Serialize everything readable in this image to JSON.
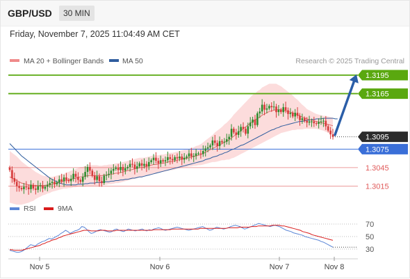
{
  "header": {
    "symbol": "GBP/USD",
    "timeframe": "30 MIN",
    "datetime": "Friday, November 7, 2025 11:04:49 AM CET"
  },
  "legend": [
    {
      "label": "MA 20 + Bollinger Bands",
      "color": "#f08a8a"
    },
    {
      "label": "MA 50",
      "color": "#2f5d9e"
    }
  ],
  "copyright": "Research © 2025 Trading Central",
  "colors": {
    "green": "#5aa80f",
    "blue": "#3a6fd8",
    "red": "#e05a5a",
    "arrow": "#2b5ea8",
    "up": "#2e8b2e",
    "down": "#d63a3a"
  },
  "chart_data": {
    "type": "candlestick",
    "x_ticks": [
      "Nov 5",
      "Nov 6",
      "Nov 7",
      "Nov 8"
    ],
    "y_levels": [
      {
        "value": 1.3195,
        "label": "1.3195",
        "style": "green-box"
      },
      {
        "value": 1.3165,
        "label": "1.3165",
        "style": "green-box"
      },
      {
        "value": 1.3095,
        "label": "1.3095",
        "style": "dark-box",
        "current": true
      },
      {
        "value": 1.3075,
        "label": "1.3075",
        "style": "blue-box"
      },
      {
        "value": 1.3045,
        "label": "1.3045",
        "style": "red-text"
      },
      {
        "value": 1.3015,
        "label": "1.3015",
        "style": "red-text"
      }
    ],
    "close": [
      1.3041,
      1.3028,
      1.3022,
      1.3015,
      1.3012,
      1.301,
      1.3014,
      1.3013,
      1.301,
      1.3017,
      1.3011,
      1.3009,
      1.3015,
      1.3016,
      1.3011,
      1.3014,
      1.3017,
      1.302,
      1.3022,
      1.3018,
      1.3021,
      1.3026,
      1.3023,
      1.3029,
      1.3025,
      1.3023,
      1.3027,
      1.3035,
      1.303,
      1.3025,
      1.3022,
      1.303,
      1.3038,
      1.3046,
      1.304,
      1.3032,
      1.3025,
      1.3031,
      1.3023,
      1.302,
      1.3032,
      1.3033,
      1.3035,
      1.304,
      1.3043,
      1.3045,
      1.3041,
      1.3046,
      1.304,
      1.3044,
      1.3046,
      1.3051,
      1.305,
      1.3043,
      1.3047,
      1.3052,
      1.3048,
      1.3051,
      1.3047,
      1.3054,
      1.3057,
      1.3061,
      1.3056,
      1.3052,
      1.3057,
      1.3055,
      1.3057,
      1.3062,
      1.3059,
      1.3057,
      1.3062,
      1.306,
      1.3063,
      1.3058,
      1.3061,
      1.3063,
      1.3068,
      1.3063,
      1.3064,
      1.3068,
      1.3068,
      1.3067,
      1.3072,
      1.3076,
      1.3078,
      1.3081,
      1.3089,
      1.3085,
      1.308,
      1.3088,
      1.3086,
      1.3087,
      1.3091,
      1.3095,
      1.3108,
      1.3102,
      1.3098,
      1.3104,
      1.3111,
      1.3108,
      1.31,
      1.3112,
      1.3118,
      1.3123,
      1.3114,
      1.3133,
      1.3136,
      1.3147,
      1.3139,
      1.3141,
      1.3145,
      1.3143,
      1.3144,
      1.3135,
      1.3139,
      1.3135,
      1.3143,
      1.3138,
      1.3132,
      1.3134,
      1.3128,
      1.3134,
      1.3129,
      1.3122,
      1.3125,
      1.3121,
      1.3118,
      1.312,
      1.312,
      1.3117,
      1.3116,
      1.3119,
      1.312,
      1.3121,
      1.3112,
      1.3105,
      1.3099,
      1.3095
    ],
    "ma20": [
      1.303,
      1.3028,
      1.3026,
      1.3024,
      1.3022,
      1.302,
      1.3019,
      1.3018,
      1.3017,
      1.3017,
      1.3016,
      1.3016,
      1.3016,
      1.3016,
      1.3016,
      1.3016,
      1.3017,
      1.3017,
      1.3018,
      1.3019,
      1.302,
      1.3021,
      1.3022,
      1.3023,
      1.3024,
      1.3025,
      1.3026,
      1.3027,
      1.3028,
      1.3029,
      1.303,
      1.303,
      1.3031,
      1.3032,
      1.3032,
      1.3032,
      1.3032,
      1.3032,
      1.3032,
      1.3032,
      1.3033,
      1.3033,
      1.3034,
      1.3034,
      1.3035,
      1.3036,
      1.3036,
      1.3037,
      1.3038,
      1.3039,
      1.304,
      1.3041,
      1.3042,
      1.3043,
      1.3044,
      1.3045,
      1.3045,
      1.3046,
      1.3047,
      1.3048,
      1.3049,
      1.305,
      1.305,
      1.3051,
      1.3052,
      1.3052,
      1.3053,
      1.3054,
      1.3055,
      1.3055,
      1.3056,
      1.3057,
      1.3058,
      1.3059,
      1.306,
      1.306,
      1.3061,
      1.3062,
      1.3063,
      1.3064,
      1.3065,
      1.3066,
      1.3068,
      1.307,
      1.3072,
      1.3074,
      1.3076,
      1.3078,
      1.308,
      1.3082,
      1.3084,
      1.3086,
      1.3088,
      1.309,
      1.3093,
      1.3096,
      1.3099,
      1.3102,
      1.3105,
      1.3108,
      1.3111,
      1.3114,
      1.3117,
      1.312,
      1.3122,
      1.3125,
      1.3127,
      1.313,
      1.3132,
      1.3134,
      1.3136,
      1.3137,
      1.3138,
      1.3139,
      1.3139,
      1.3139,
      1.3138,
      1.3137,
      1.3136,
      1.3135,
      1.3134,
      1.3132,
      1.3131,
      1.3129,
      1.3127,
      1.3126,
      1.3124,
      1.3123,
      1.3122,
      1.3121,
      1.312,
      1.3119,
      1.3118,
      1.3117,
      1.3116,
      1.3115,
      1.3114,
      1.3113
    ],
    "ma50": [
      1.3084,
      1.308,
      1.3076,
      1.3072,
      1.3068,
      1.3064,
      1.3061,
      1.3058,
      1.3055,
      1.3052,
      1.3049,
      1.3046,
      1.3043,
      1.304,
      1.3037,
      1.3034,
      1.3031,
      1.3028,
      1.3026,
      1.3024,
      1.3022,
      1.302,
      1.3019,
      1.3018,
      1.3017,
      1.3017,
      1.3017,
      1.3017,
      1.3017,
      1.3018,
      1.3018,
      1.3018,
      1.3019,
      1.3019,
      1.302,
      1.302,
      1.302,
      1.3021,
      1.3021,
      1.3021,
      1.3022,
      1.3022,
      1.3022,
      1.3023,
      1.3023,
      1.3024,
      1.3024,
      1.3025,
      1.3025,
      1.3026,
      1.3026,
      1.3027,
      1.3028,
      1.3028,
      1.3029,
      1.303,
      1.303,
      1.3031,
      1.3032,
      1.3033,
      1.3034,
      1.3035,
      1.3036,
      1.3037,
      1.3038,
      1.3039,
      1.304,
      1.3041,
      1.3042,
      1.3043,
      1.3044,
      1.3045,
      1.3046,
      1.3047,
      1.3048,
      1.3049,
      1.305,
      1.3051,
      1.3052,
      1.3053,
      1.3054,
      1.3055,
      1.3056,
      1.3058,
      1.3059,
      1.306,
      1.3062,
      1.3063,
      1.3064,
      1.3066,
      1.3067,
      1.3069,
      1.307,
      1.3072,
      1.3074,
      1.3075,
      1.3077,
      1.3079,
      1.3081,
      1.3082,
      1.3084,
      1.3086,
      1.3088,
      1.309,
      1.3092,
      1.3094,
      1.3096,
      1.3098,
      1.31,
      1.3102,
      1.3104,
      1.3106,
      1.3107,
      1.3109,
      1.311,
      1.3112,
      1.3113,
      1.3114,
      1.3115,
      1.3116,
      1.3117,
      1.3118,
      1.3119,
      1.312,
      1.312,
      1.3121,
      1.3122,
      1.3122,
      1.3123,
      1.3123,
      1.3124,
      1.3124,
      1.3124,
      1.3125,
      1.3125,
      1.3125,
      1.3125,
      1.3125,
      1.3124,
      1.3124
    ],
    "bb_width": [
      0.0042,
      0.0041,
      0.004,
      0.0039,
      0.0037,
      0.0035,
      0.0033,
      0.0031,
      0.0029,
      0.0027,
      0.0025,
      0.0022,
      0.002,
      0.0018,
      0.0016,
      0.0015,
      0.0014,
      0.0013,
      0.0012,
      0.0012,
      0.0012,
      0.0012,
      0.0012,
      0.0012,
      0.0013,
      0.0013,
      0.0014,
      0.0014,
      0.0015,
      0.0015,
      0.0016,
      0.0016,
      0.0017,
      0.0017,
      0.0017,
      0.0017,
      0.0017,
      0.0017,
      0.0016,
      0.0016,
      0.0016,
      0.0016,
      0.0016,
      0.0016,
      0.0016,
      0.0016,
      0.0016,
      0.0016,
      0.0016,
      0.0016,
      0.0016,
      0.0016,
      0.0016,
      0.0016,
      0.0016,
      0.0016,
      0.0016,
      0.0015,
      0.0015,
      0.0015,
      0.0015,
      0.0015,
      0.0015,
      0.0014,
      0.0014,
      0.0014,
      0.0014,
      0.0014,
      0.0014,
      0.0014,
      0.0014,
      0.0014,
      0.0014,
      0.0014,
      0.0014,
      0.0014,
      0.0014,
      0.0015,
      0.0015,
      0.0016,
      0.0016,
      0.0017,
      0.0018,
      0.0019,
      0.002,
      0.0021,
      0.0022,
      0.0024,
      0.0025,
      0.0026,
      0.0027,
      0.0029,
      0.003,
      0.0032,
      0.0033,
      0.0035,
      0.0036,
      0.0037,
      0.0038,
      0.0039,
      0.004,
      0.0041,
      0.0042,
      0.0043,
      0.0043,
      0.0044,
      0.0044,
      0.0045,
      0.0045,
      0.0045,
      0.0045,
      0.0044,
      0.0043,
      0.0042,
      0.004,
      0.0038,
      0.0036,
      0.0034,
      0.0032,
      0.003,
      0.0028,
      0.0026,
      0.0024,
      0.0022,
      0.002,
      0.0018,
      0.0016,
      0.0015,
      0.0014,
      0.0013,
      0.0012,
      0.0012,
      0.0012,
      0.0012,
      0.0013,
      0.0013,
      0.0013,
      0.0013,
      0.0013,
      0.0014
    ],
    "forecast": {
      "from": 1.3098,
      "to": 1.3195
    },
    "rsi": {
      "label": "RSI",
      "ma_label": "9MA",
      "ticks": [
        70,
        50,
        30
      ],
      "values": [
        28,
        27,
        26,
        25,
        25,
        26,
        28,
        31,
        34,
        37,
        36,
        35,
        38,
        40,
        42,
        43,
        45,
        47,
        46,
        48,
        50,
        52,
        55,
        57,
        60,
        58,
        55,
        57,
        59,
        60,
        62,
        66,
        65,
        62,
        58,
        55,
        56,
        58,
        60,
        61,
        60,
        59,
        58,
        57,
        58,
        61,
        62,
        60,
        59,
        58,
        60,
        62,
        61,
        60,
        59,
        60,
        61,
        62,
        60,
        59,
        61,
        60,
        62,
        63,
        64,
        63,
        61,
        60,
        61,
        62,
        63,
        64,
        65,
        64,
        63,
        62,
        61,
        60,
        61,
        62,
        63,
        64,
        65,
        66,
        64,
        62,
        60,
        61,
        63,
        65,
        64,
        63,
        62,
        63,
        64,
        66,
        67,
        68,
        67,
        66,
        64,
        62,
        63,
        65,
        66,
        68,
        69,
        71,
        70,
        69,
        68,
        67,
        66,
        67,
        68,
        67,
        66,
        64,
        62,
        60,
        59,
        58,
        56,
        55,
        54,
        53,
        52,
        50,
        49,
        48,
        47,
        46,
        45,
        44,
        42,
        41,
        39,
        37,
        35,
        33
      ],
      "ma": [
        29,
        29,
        28,
        28,
        28,
        28,
        29,
        30,
        31,
        32,
        33,
        34,
        35,
        36,
        38,
        39,
        41,
        42,
        44,
        45,
        46,
        48,
        49,
        51,
        52,
        53,
        54,
        55,
        56,
        57,
        58,
        59,
        60,
        60,
        60,
        59,
        59,
        59,
        59,
        60,
        60,
        60,
        59,
        59,
        59,
        59,
        60,
        60,
        60,
        60,
        60,
        60,
        60,
        60,
        60,
        60,
        60,
        60,
        60,
        60,
        60,
        60,
        61,
        61,
        61,
        61,
        61,
        61,
        61,
        61,
        62,
        62,
        62,
        62,
        62,
        62,
        62,
        62,
        62,
        62,
        62,
        62,
        63,
        63,
        63,
        63,
        63,
        63,
        63,
        63,
        63,
        63,
        63,
        63,
        64,
        64,
        64,
        64,
        64,
        65,
        65,
        65,
        65,
        65,
        66,
        66,
        66,
        67,
        67,
        67,
        67,
        67,
        67,
        68,
        68,
        68,
        68,
        67,
        67,
        66,
        65,
        64,
        63,
        62,
        61,
        60,
        58,
        57,
        56,
        55,
        53,
        52,
        51,
        50,
        49,
        48,
        47,
        46,
        45,
        44
      ]
    }
  }
}
